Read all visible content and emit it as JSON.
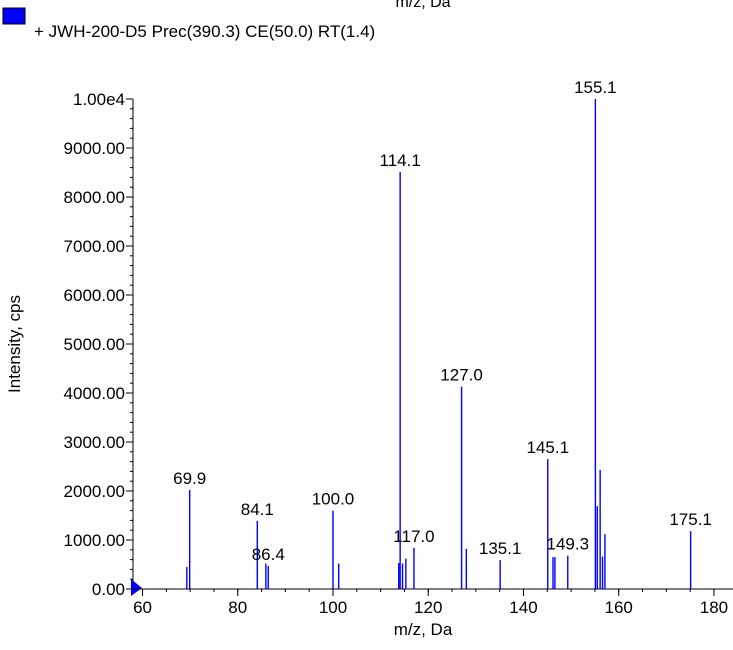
{
  "chart_data": {
    "type": "bar",
    "title": "m/z, Da",
    "legend": {
      "placement": "top-left",
      "entries": [
        {
          "label": "+ JWH-200-D5 Prec(390.3) CE(50.0) RT(1.4)",
          "color": "#0000ff"
        }
      ]
    },
    "xlabel": "m/z, Da",
    "ylabel": "Intensity, cps",
    "xlim": [
      58,
      184
    ],
    "ylim": [
      0,
      10000
    ],
    "x_ticks": [
      60,
      80,
      100,
      120,
      140,
      160,
      180
    ],
    "y_ticks": [
      0,
      1000,
      2000,
      3000,
      4000,
      5000,
      6000,
      7000,
      8000,
      9000,
      10000
    ],
    "y_tick_labels": [
      "0.00",
      "1000.00",
      "2000.00",
      "3000.00",
      "4000.00",
      "5000.00",
      "6000.00",
      "7000.00",
      "8000.00",
      "9000.00",
      "1.00e4"
    ],
    "y_minor_step": 200,
    "x_minor_step": 5,
    "grid": false,
    "colors": {
      "series": "#0000ff",
      "axis": "#000000",
      "marker": "#0000ff"
    },
    "series": [
      {
        "name": "+ JWH-200-D5 Prec(390.3) CE(50.0) RT(1.4)",
        "peaks": [
          {
            "x": 69.3,
            "y": 450
          },
          {
            "x": 69.9,
            "y": 2020
          },
          {
            "x": 84.1,
            "y": 1390
          },
          {
            "x": 85.9,
            "y": 520
          },
          {
            "x": 86.4,
            "y": 470
          },
          {
            "x": 100.0,
            "y": 1600
          },
          {
            "x": 101.2,
            "y": 520
          },
          {
            "x": 113.8,
            "y": 530
          },
          {
            "x": 114.1,
            "y": 8510
          },
          {
            "x": 114.6,
            "y": 520
          },
          {
            "x": 115.3,
            "y": 620
          },
          {
            "x": 117.0,
            "y": 840
          },
          {
            "x": 127.0,
            "y": 4130
          },
          {
            "x": 128.0,
            "y": 820
          },
          {
            "x": 135.1,
            "y": 590
          },
          {
            "x": 145.1,
            "y": 2650
          },
          {
            "x": 146.2,
            "y": 650
          },
          {
            "x": 146.6,
            "y": 650
          },
          {
            "x": 149.3,
            "y": 680
          },
          {
            "x": 155.1,
            "y": 10000
          },
          {
            "x": 155.5,
            "y": 1690
          },
          {
            "x": 156.1,
            "y": 2430
          },
          {
            "x": 156.6,
            "y": 660
          },
          {
            "x": 157.1,
            "y": 1120
          },
          {
            "x": 175.1,
            "y": 1180
          }
        ]
      }
    ],
    "annotations": [
      {
        "x": 69.9,
        "y": 2020,
        "text": "69.9"
      },
      {
        "x": 84.1,
        "y": 1390,
        "text": "84.1"
      },
      {
        "x": 86.4,
        "y": 470,
        "text": "86.4"
      },
      {
        "x": 100.0,
        "y": 1600,
        "text": "100.0"
      },
      {
        "x": 114.1,
        "y": 8510,
        "text": "114.1"
      },
      {
        "x": 117.0,
        "y": 840,
        "text": "117.0"
      },
      {
        "x": 127.0,
        "y": 4130,
        "text": "127.0"
      },
      {
        "x": 135.1,
        "y": 590,
        "text": "135.1"
      },
      {
        "x": 145.1,
        "y": 2650,
        "text": "145.1"
      },
      {
        "x": 149.3,
        "y": 680,
        "text": "149.3"
      },
      {
        "x": 155.1,
        "y": 10000,
        "text": "155.1"
      },
      {
        "x": 175.1,
        "y": 1180,
        "text": "175.1"
      }
    ]
  }
}
